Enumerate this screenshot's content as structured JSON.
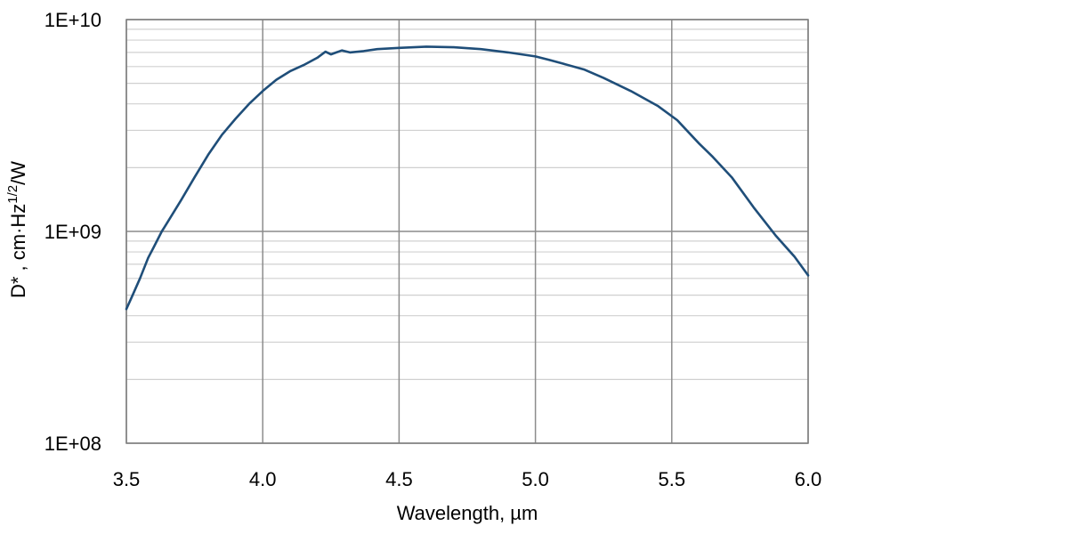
{
  "chart_data": {
    "type": "line",
    "title": "",
    "xlabel": "Wavelength, µm",
    "ylabel_main": "D* , cm·Hz",
    "ylabel_sup": "1/2",
    "ylabel_tail": "/W",
    "xlim": [
      3.5,
      6.0
    ],
    "ylim": [
      100000000.0,
      10000000000.0
    ],
    "y_scale": "log",
    "x_ticks": [
      3.5,
      4.0,
      4.5,
      5.0,
      5.5,
      6.0
    ],
    "x_tick_labels": [
      "3.5",
      "4.0",
      "4.5",
      "5.0",
      "5.5",
      "6.0"
    ],
    "y_ticks": [
      100000000.0,
      1000000000.0,
      10000000000.0
    ],
    "y_tick_labels": [
      "1E+08",
      "1E+09",
      "1E+10"
    ],
    "grid": true,
    "legend": "none",
    "colors": {
      "line": "#1f4e79",
      "major_grid": "#8c8c8c",
      "minor_grid": "#d0d0d0",
      "axis": "#7f7f7f"
    },
    "series": [
      {
        "x": [
          3.5,
          3.52,
          3.55,
          3.58,
          3.6,
          3.63,
          3.65,
          3.7,
          3.75,
          3.8,
          3.85,
          3.9,
          3.95,
          4.0,
          4.05,
          4.1,
          4.15,
          4.2,
          4.23,
          4.25,
          4.27,
          4.29,
          4.32,
          4.37,
          4.42,
          4.5,
          4.6,
          4.7,
          4.8,
          4.9,
          5.0,
          5.05,
          5.1,
          5.18,
          5.25,
          5.35,
          5.45,
          5.52,
          5.6,
          5.65,
          5.72,
          5.8,
          5.88,
          5.95,
          6.0
        ],
        "y": [
          430000000.0,
          490000000.0,
          600000000.0,
          750000000.0,
          840000000.0,
          1000000000.0,
          1100000000.0,
          1400000000.0,
          1800000000.0,
          2300000000.0,
          2850000000.0,
          3400000000.0,
          4000000000.0,
          4600000000.0,
          5200000000.0,
          5700000000.0,
          6100000000.0,
          6600000000.0,
          7050000000.0,
          6850000000.0,
          7000000000.0,
          7150000000.0,
          7000000000.0,
          7100000000.0,
          7250000000.0,
          7350000000.0,
          7450000000.0,
          7400000000.0,
          7250000000.0,
          7000000000.0,
          6700000000.0,
          6450000000.0,
          6200000000.0,
          5800000000.0,
          5300000000.0,
          4600000000.0,
          3900000000.0,
          3350000000.0,
          2600000000.0,
          2250000000.0,
          1800000000.0,
          1300000000.0,
          960000000.0,
          760000000.0,
          620000000.0
        ]
      }
    ]
  }
}
